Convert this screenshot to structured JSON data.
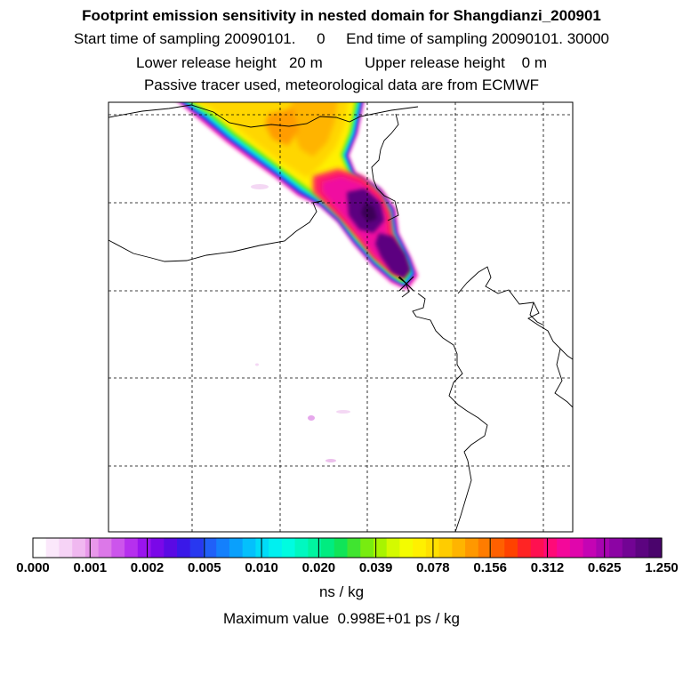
{
  "title": "Footprint emission sensitivity in nested domain for Shangdianzi_200901",
  "line_sampling": "Start time of sampling 20090101.     0     End time of sampling 20090101. 30000",
  "line_release": "Lower release height   20 m          Upper release height    0 m",
  "line_tracer": "Passive tracer used, meteorological data are from ECMWF",
  "colorbar": {
    "ticks": [
      "0.000",
      "0.001",
      "0.002",
      "0.005",
      "0.010",
      "0.020",
      "0.039",
      "0.078",
      "0.156",
      "0.312",
      "0.625",
      "1.250"
    ],
    "colors": [
      "#ffffff",
      "#fbe8fb",
      "#f6d3f6",
      "#f0b8f0",
      "#e898ea",
      "#dc78e8",
      "#cc55ec",
      "#b630ee",
      "#9a14ee",
      "#7a08e8",
      "#5a0ae4",
      "#3a18e8",
      "#2838f0",
      "#2060f8",
      "#1480fc",
      "#0aa0fc",
      "#04c0fc",
      "#00dcf8",
      "#00f0f0",
      "#00fce0",
      "#00f8c0",
      "#00f4a0",
      "#00ec80",
      "#10e458",
      "#40e430",
      "#78ec10",
      "#a8f400",
      "#d4fa00",
      "#f4fc00",
      "#fff000",
      "#ffe000",
      "#ffcc00",
      "#ffb400",
      "#ff9800",
      "#ff7c00",
      "#ff6000",
      "#ff4200",
      "#ff2424",
      "#ff1050",
      "#ff0a78",
      "#f4089a",
      "#e006ac",
      "#c404b4",
      "#a804b0",
      "#8c04a4",
      "#720494",
      "#5c0480",
      "#4a046c"
    ],
    "units": "ns / kg",
    "max_text": "Maximum value  0.998E+01 ps / kg"
  }
}
